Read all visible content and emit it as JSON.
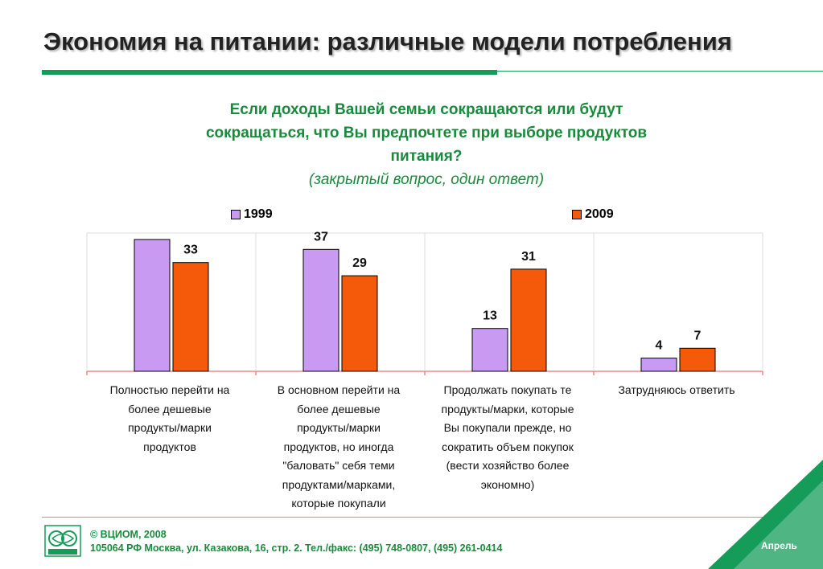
{
  "slide": {
    "title": "Экономия на питании: различные модели потребления",
    "question_lines": [
      "Если доходы Вашей семьи сокращаются или будут",
      "сокращаться, что Вы предпочтете при выборе продуктов",
      "питания?"
    ],
    "question_note": "(закрытый вопрос, один ответ)",
    "footer": {
      "copyright": "© ВЦИОМ, 2008",
      "address": "105064 РФ Москва, ул. Казакова, 16, стр. 2.  Тел./факс: (495) 748-0807, (495) 261-0414",
      "logo_text": "ВЦИОМ"
    },
    "month_label": "Апрель"
  },
  "colors": {
    "brand_green": "#149c58",
    "series_1999": "#c99af2",
    "series_2009": "#f45a0a"
  },
  "chart_data": {
    "type": "bar",
    "categories": [
      "Полностью перейти на более дешевые продукты/марки продуктов",
      "В основном перейти на более дешевые продукты/марки продуктов, но иногда \"баловать\" себя теми продуктами/марками, которые покупали",
      "Продолжать покупать те продукты/марки, которые Вы покупали прежде, но сократить объем покупок (вести хозяйство более экономно)",
      "Затрудняюсь ответить"
    ],
    "category_lines": [
      [
        "Полностью перейти на",
        "более дешевые",
        "продукты/марки",
        "продуктов"
      ],
      [
        "В основном перейти на",
        "более дешевые",
        "продукты/марки",
        "продуктов, но иногда",
        "\"баловать\" себя теми",
        "продуктами/марками,",
        "которые покупали"
      ],
      [
        "Продолжать покупать те",
        "продукты/марки, которые",
        "Вы покупали прежде, но",
        "сократить объем покупок",
        "(вести хозяйство более",
        "экономно)"
      ],
      [
        "Затрудняюсь ответить"
      ]
    ],
    "series": [
      {
        "name": "1999",
        "values": [
          null,
          37,
          13,
          4
        ],
        "color": "#c99af2"
      },
      {
        "name": "2009",
        "values": [
          33,
          29,
          31,
          7
        ],
        "color": "#f45a0a"
      }
    ],
    "bar_1999_first_group": 40,
    "ylim": [
      0,
      40
    ],
    "legend": "top"
  }
}
